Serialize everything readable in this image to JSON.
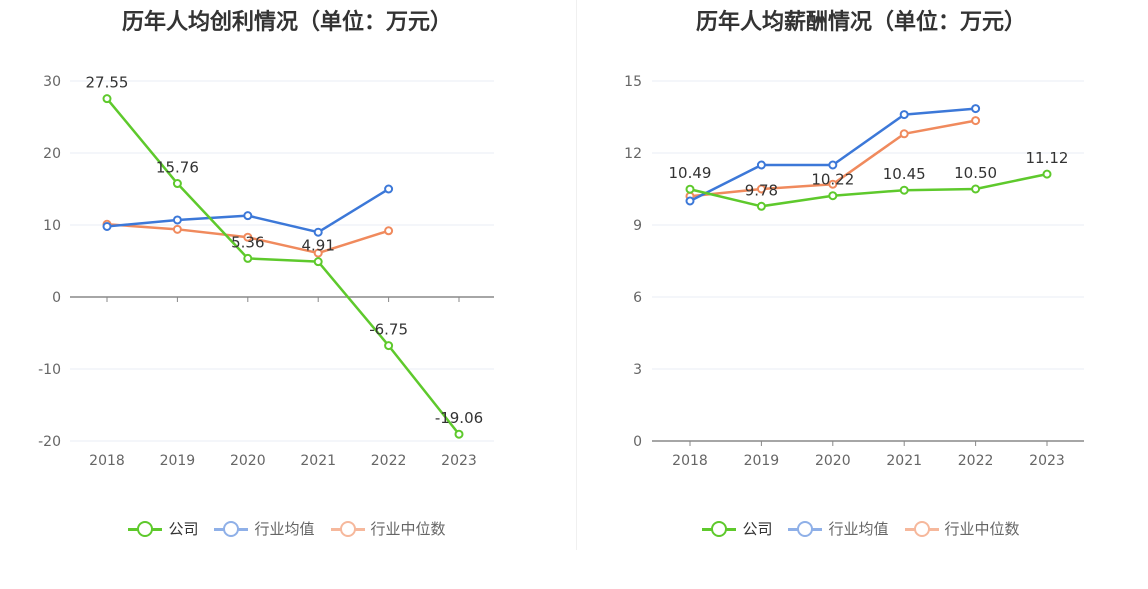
{
  "colors": {
    "company": "#5ec92c",
    "industry_avg": "#3c78d8",
    "industry_median": "#f08a5d",
    "grid": "#e8ecf5",
    "axis": "#888888",
    "text": "#666666"
  },
  "legend": [
    "公司",
    "行业均值",
    "行业中位数"
  ],
  "chart_data": [
    {
      "type": "line",
      "title": "历年人均创利情况（单位：万元）",
      "categories": [
        "2018",
        "2019",
        "2020",
        "2021",
        "2022",
        "2023"
      ],
      "ylim": [
        -20,
        30
      ],
      "yticks": [
        30,
        20,
        10,
        0,
        -10,
        -20
      ],
      "grid": true,
      "legend_position": "bottom",
      "series": [
        {
          "name": "公司",
          "values": [
            27.55,
            15.76,
            5.36,
            4.91,
            -6.75,
            -19.06
          ],
          "labels": [
            "27.55",
            "15.76",
            "5.36",
            "4.91",
            "-6.75",
            "-19.06"
          ]
        },
        {
          "name": "行业均值",
          "values": [
            9.8,
            10.7,
            11.3,
            9.0,
            15.0,
            null
          ]
        },
        {
          "name": "行业中位数",
          "values": [
            10.1,
            9.4,
            8.3,
            6.1,
            9.2,
            null
          ]
        }
      ]
    },
    {
      "type": "line",
      "title": "历年人均薪酬情况（单位：万元）",
      "categories": [
        "2018",
        "2019",
        "2020",
        "2021",
        "2022",
        "2023"
      ],
      "ylim": [
        0,
        15
      ],
      "yticks": [
        15,
        12,
        9,
        6,
        3,
        0
      ],
      "grid": true,
      "legend_position": "bottom",
      "series": [
        {
          "name": "公司",
          "values": [
            10.49,
            9.78,
            10.22,
            10.45,
            10.5,
            11.12
          ],
          "labels": [
            "10.49",
            "9.78",
            "10.22",
            "10.45",
            "10.50",
            "11.12"
          ]
        },
        {
          "name": "行业均值",
          "values": [
            10.0,
            11.5,
            11.5,
            13.6,
            13.85,
            null
          ]
        },
        {
          "name": "行业中位数",
          "values": [
            10.2,
            10.5,
            10.7,
            12.8,
            13.35,
            null
          ]
        }
      ]
    }
  ]
}
